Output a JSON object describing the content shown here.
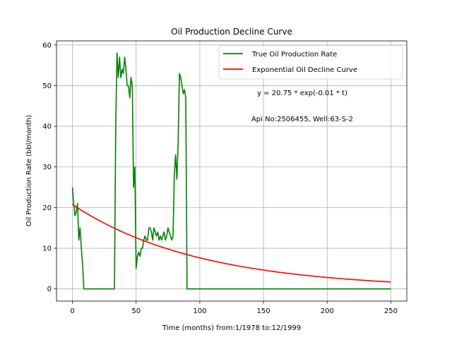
{
  "chart_data": {
    "type": "line",
    "title": "Oil Production Decline Curve",
    "xlabel": "Time (months) from:1/1978 to:12/1999",
    "ylabel": "Oil Production Rate (bbl/month)",
    "xlim": [
      -12.5,
      262.5
    ],
    "ylim": [
      -3,
      61
    ],
    "xticks": [
      0,
      50,
      100,
      150,
      200,
      250
    ],
    "yticks": [
      0,
      10,
      20,
      30,
      40,
      50,
      60
    ],
    "grid": true,
    "legend_position": "top-right",
    "annotations": [
      "y = 20.75 * exp(-0.01 * t)",
      "Api No:2506455, Well:63-S-2"
    ],
    "series": [
      {
        "name": "True Oil Production Rate",
        "color": "#008000",
        "x": [
          0,
          1,
          2,
          3,
          4,
          5,
          6,
          7,
          8,
          9,
          10,
          11,
          12,
          13,
          14,
          15,
          16,
          17,
          18,
          19,
          20,
          21,
          22,
          23,
          24,
          25,
          26,
          27,
          28,
          29,
          30,
          31,
          32,
          33,
          34,
          35,
          36,
          37,
          38,
          39,
          40,
          41,
          42,
          43,
          44,
          45,
          46,
          47,
          48,
          49,
          50,
          51,
          52,
          53,
          54,
          55,
          56,
          57,
          58,
          59,
          60,
          61,
          62,
          63,
          64,
          65,
          66,
          67,
          68,
          69,
          70,
          71,
          72,
          73,
          74,
          75,
          76,
          77,
          78,
          79,
          80,
          81,
          82,
          83,
          84,
          85,
          86,
          87,
          88,
          89,
          90,
          91,
          92,
          93,
          94,
          250
        ],
        "y": [
          25,
          21,
          18,
          19,
          21,
          12,
          15,
          10,
          6,
          0,
          0,
          0,
          0,
          0,
          0,
          0,
          0,
          0,
          0,
          0,
          0,
          0,
          0,
          0,
          0,
          0,
          0,
          0,
          0,
          0,
          0,
          0,
          0,
          0,
          40,
          58,
          52,
          57,
          52,
          54,
          53,
          57,
          54,
          50,
          50,
          47,
          52,
          50,
          25,
          30,
          5,
          8,
          9,
          8,
          10,
          10,
          12,
          13,
          12,
          12,
          15,
          15,
          14,
          12,
          15,
          14,
          13,
          14,
          12,
          13,
          12,
          13,
          14,
          12,
          13,
          15,
          14,
          13,
          12,
          13,
          28,
          33,
          27,
          36,
          53,
          52,
          50,
          48,
          49,
          47,
          0,
          0,
          0,
          0,
          0,
          0
        ]
      },
      {
        "name": "Exponential Oil Decline Curve",
        "color": "#ff0000",
        "model": {
          "a": 20.75,
          "b": -0.01
        },
        "x_range": [
          0,
          250
        ]
      }
    ]
  }
}
